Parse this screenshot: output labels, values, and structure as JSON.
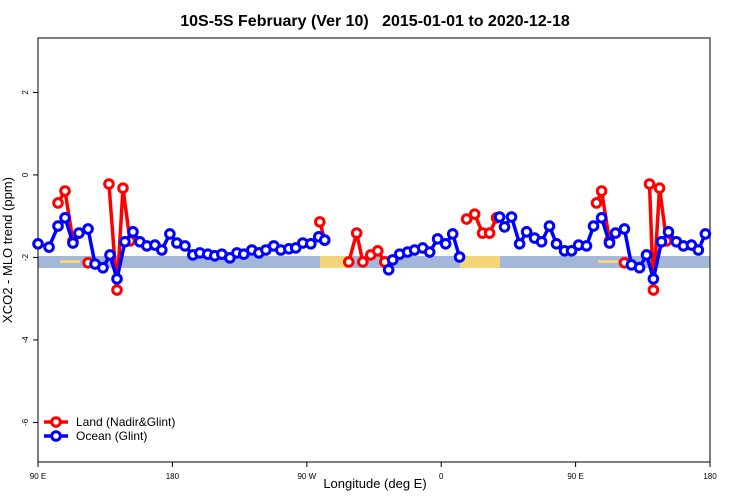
{
  "chart_data": {
    "type": "line",
    "title": "10S-5S February (Ver 10)   2015-01-01 to 2020-12-18",
    "x_label": "Longitude (deg E)",
    "y_label": "XCO2 - MLO trend (ppm)",
    "xlim": [
      90,
      540
    ],
    "ylim": [
      -6.96,
      3.32
    ],
    "xticks": [
      {
        "value": 90,
        "label": "90 E"
      },
      {
        "value": 180,
        "label": "180"
      },
      {
        "value": 270,
        "label": "90 W"
      },
      {
        "value": 360,
        "label": "0"
      },
      {
        "value": 450,
        "label": "90 E"
      },
      {
        "value": 540,
        "label": "180"
      }
    ],
    "yticks": [
      -6,
      -4,
      -2,
      0,
      2
    ],
    "legend": "bottom-left",
    "series": [
      {
        "name": "Land (Nadir&Glint)",
        "color": "#ff0000",
        "x": [
          103.4,
          108.1,
          113.4,
          null,
          123.5,
          null,
          137.5,
          142.9,
          146.9,
          151.6,
          null,
          278.7,
          282.0,
          null,
          298.1,
          303.4,
          307.5,
          312.8,
          317.5,
          322.2,
          null,
          377.0,
          382.4,
          387.7,
          392.4,
          397.1,
          null,
          464.0,
          467.4,
          472.7,
          null,
          482.7,
          null,
          499.5,
          502.1,
          506.2,
          510.9
        ],
        "values": [
          -0.68,
          -0.39,
          -1.6,
          null,
          -2.13,
          null,
          -0.22,
          -2.79,
          -0.32,
          -1.6,
          null,
          -1.14,
          -1.58,
          null,
          -2.11,
          -1.41,
          -2.11,
          -1.94,
          -1.84,
          -2.11,
          null,
          -1.07,
          -0.95,
          -1.41,
          -1.41,
          -1.04,
          null,
          -0.68,
          -0.39,
          -1.6,
          null,
          -2.13,
          null,
          -0.22,
          -2.79,
          -0.32,
          -1.6
        ]
      },
      {
        "name": "Ocean (Glint)",
        "color": "#0000ff",
        "x": [
          90.0,
          97.4,
          103.4,
          108.1,
          113.4,
          117.4,
          123.5,
          128.2,
          133.5,
          138.2,
          142.9,
          148.2,
          153.6,
          158.2,
          162.9,
          168.3,
          172.9,
          178.3,
          183.0,
          188.4,
          193.7,
          198.4,
          203.7,
          208.4,
          213.1,
          218.5,
          223.2,
          227.8,
          233.2,
          237.9,
          242.6,
          247.9,
          252.6,
          258.0,
          262.6,
          267.3,
          272.7,
          278.0,
          282.0,
          null,
          324.8,
          327.5,
          332.2,
          337.5,
          342.2,
          347.6,
          352.3,
          357.6,
          363.0,
          367.7,
          372.3,
          null,
          399.1,
          402.4,
          407.1,
          412.5,
          417.2,
          422.5,
          427.2,
          432.5,
          437.2,
          442.6,
          447.3,
          452.0,
          457.3,
          462.0,
          467.4,
          472.7,
          476.7,
          482.7,
          487.4,
          492.8,
          497.5,
          502.1,
          507.5,
          512.2,
          517.5,
          522.2,
          527.6,
          532.2,
          536.9
        ],
        "values": [
          -1.67,
          -1.75,
          -1.24,
          -1.04,
          -1.65,
          -1.41,
          -1.31,
          -2.16,
          -2.25,
          -1.94,
          -2.52,
          -1.62,
          -1.38,
          -1.62,
          -1.72,
          -1.7,
          -1.82,
          -1.43,
          -1.65,
          -1.72,
          -1.94,
          -1.89,
          -1.92,
          -1.96,
          -1.92,
          -2.01,
          -1.89,
          -1.92,
          -1.82,
          -1.89,
          -1.82,
          -1.72,
          -1.82,
          -1.79,
          -1.77,
          -1.65,
          -1.67,
          -1.5,
          -1.58,
          null,
          -2.3,
          -2.06,
          -1.92,
          -1.87,
          -1.82,
          -1.77,
          -1.87,
          -1.55,
          -1.67,
          -1.43,
          -1.99,
          null,
          -1.02,
          -1.26,
          -1.02,
          -1.67,
          -1.38,
          -1.53,
          -1.62,
          -1.24,
          -1.67,
          -1.84,
          -1.84,
          -1.7,
          -1.72,
          -1.24,
          -1.04,
          -1.65,
          -1.41,
          -1.31,
          -2.18,
          -2.25,
          -1.94,
          -2.52,
          -1.62,
          -1.38,
          -1.62,
          -1.72,
          -1.7,
          -1.82,
          -1.43
        ]
      }
    ]
  }
}
